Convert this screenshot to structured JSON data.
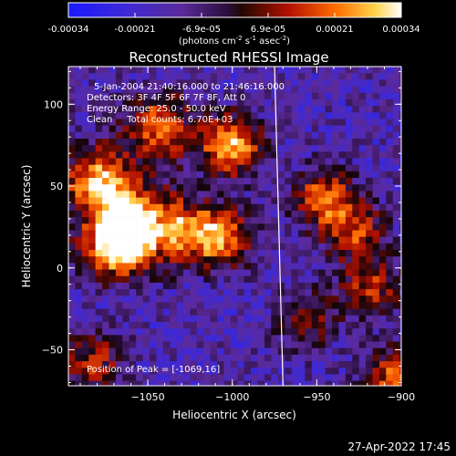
{
  "chart_data": {
    "type": "heatmap",
    "title": "Reconstructed RHESSI Image",
    "xlabel": "Heliocentric X (arcsec)",
    "ylabel": "Heliocentric Y (arcsec)",
    "xlim": [
      -1097,
      -900
    ],
    "ylim": [
      -72,
      123
    ],
    "xticks": [
      -1050,
      -1000,
      -950,
      -900
    ],
    "yticks": [
      -50,
      0,
      50,
      100
    ],
    "colorbar": {
      "ticks": [
        "-0.00034",
        "-0.00021",
        "-6.9e-05",
        "6.9e-05",
        "0.00021",
        "0.00034"
      ],
      "range": [
        -0.00034,
        0.00034
      ],
      "units_line": "(photons cm",
      "units_exp1": "-2",
      "units_mid": " s",
      "units_exp2": "-1",
      "units_mid2": " asec",
      "units_exp3": "-2",
      "units_close": ")"
    },
    "annotations": {
      "time": "5-Jan-2004 21:40:16.000 to 21:46:16.000",
      "detectors": "Detectors: 3F 4F 5F 6F 7F 8F, Att 0",
      "energy": "Energy Range: 25.0 - 50.0 keV",
      "clean": "Clean     Total counts: 6.70E+03",
      "peak": "Position of Peak = [-1069,16]"
    },
    "limb_line": {
      "x_top": -975,
      "x_bottom": -970
    },
    "bright_sources": [
      {
        "x": -1069,
        "y": 16,
        "level": 1.0
      },
      {
        "x": -1062,
        "y": 30,
        "level": 0.85
      },
      {
        "x": -1080,
        "y": 55,
        "level": 0.8
      },
      {
        "x": -1045,
        "y": 90,
        "level": 0.7
      },
      {
        "x": -1003,
        "y": 77,
        "level": 0.95
      },
      {
        "x": -1008,
        "y": 20,
        "level": 0.75
      },
      {
        "x": -1028,
        "y": 25,
        "level": 0.65
      },
      {
        "x": -948,
        "y": 45,
        "level": 0.7
      },
      {
        "x": -930,
        "y": 25,
        "level": 0.6
      },
      {
        "x": -920,
        "y": -10,
        "level": 0.55
      },
      {
        "x": -958,
        "y": -30,
        "level": 0.45
      },
      {
        "x": -1085,
        "y": -55,
        "level": 0.55
      },
      {
        "x": -905,
        "y": -65,
        "level": 0.7
      }
    ]
  },
  "footer": {
    "timestamp": "27-Apr-2022 17:45"
  }
}
